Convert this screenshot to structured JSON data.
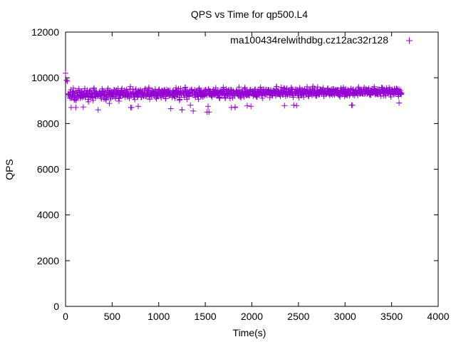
{
  "chart_data": {
    "type": "scatter",
    "title": "QPS vs Time for qp500.L4",
    "xlabel": "Time(s)",
    "ylabel": "QPS",
    "xlim": [
      0,
      4000
    ],
    "ylim": [
      0,
      12000
    ],
    "xticks": [
      "0",
      "500",
      "1000",
      "1500",
      "2000",
      "2500",
      "3000",
      "3500",
      "4000"
    ],
    "yticks": [
      "0",
      "2000",
      "4000",
      "6000",
      "8000",
      "10000",
      "12000"
    ],
    "grid": false,
    "legend_position": "top-right",
    "series": [
      {
        "name": "ma100434_rel_withdbg.cz12a_c32r128",
        "legend_label": "ma100434relwithdbg.cz12ac32r128",
        "color": "#9400d3",
        "marker": "+",
        "x_start": 0,
        "x_step": 10,
        "values": [
          10200,
          9900,
          9850,
          9300,
          9200,
          9350,
          9100,
          9250,
          9400,
          9150,
          9300,
          9050,
          9350,
          9200,
          9450,
          9250,
          9100,
          9380,
          9220,
          9300,
          9420,
          9150,
          9280,
          9350,
          9050,
          9300,
          9400,
          9200,
          9330,
          9120,
          9450,
          9260,
          9180,
          9400,
          9300,
          8600,
          9350,
          9250,
          9150,
          9420,
          9300,
          9200,
          9380,
          9100,
          9290,
          9450,
          9230,
          9350,
          9150,
          9400,
          9260,
          9310,
          9480,
          9180,
          9330,
          9250,
          9400,
          9120,
          9350,
          9290,
          9460,
          9220,
          9300,
          9380,
          9150,
          9420,
          9280,
          9350,
          9200,
          9500,
          9250,
          8700,
          9380,
          9300,
          9160,
          9450,
          9330,
          9220,
          9400,
          9280,
          9360,
          9150,
          9420,
          9300,
          9250,
          9480,
          9200,
          9350,
          9310,
          9430,
          9180,
          9370,
          9260,
          9450,
          9300,
          9220,
          9400,
          9150,
          9340,
          9280,
          9460,
          9300,
          9210,
          9390,
          9330,
          9250,
          9470,
          9180,
          9360,
          9300,
          9420,
          9240,
          9350,
          8650,
          9280,
          9410,
          9300,
          9200,
          9450,
          9330,
          9260,
          9390,
          9150,
          9420,
          9300,
          8600,
          9360,
          9250,
          9480,
          9310,
          9200,
          9400,
          9280,
          9350,
          8800,
          9450,
          9300,
          8550,
          9380,
          9250,
          9420,
          9300,
          9180,
          9460,
          9330,
          9220,
          9400,
          9290,
          9350,
          9250,
          9470,
          9300,
          8500,
          9390,
          9260,
          9430,
          9310,
          9200,
          9410,
          9340,
          9280,
          9450,
          9220,
          9380,
          9300,
          9150,
          9420,
          9350,
          9260,
          9480,
          9300,
          9230,
          9400,
          9330,
          9280,
          9450,
          9200,
          9370,
          9310,
          9250,
          9430,
          9300,
          8700,
          9390,
          9330,
          9260,
          9460,
          9300,
          9220,
          9410,
          9350,
          9280,
          9480,
          9300,
          9240,
          9400,
          9360,
          9290,
          9450,
          8750,
          9380,
          9320,
          9260,
          9470,
          9300,
          9230,
          9420,
          9350,
          9280,
          9500,
          9310,
          9250,
          9430,
          9370,
          9300,
          9480,
          9260,
          9400,
          9340,
          9280,
          9460,
          9320,
          9250,
          9430,
          9380,
          9300,
          9500,
          9270,
          9410,
          9350,
          9290,
          9470,
          9330,
          9260,
          9440,
          9380,
          9310,
          9490,
          9280,
          9420,
          9360,
          9300,
          9470,
          9340,
          9270,
          8800,
          9400,
          9330,
          9460,
          9300,
          9250,
          9420,
          9370,
          9310,
          9490,
          9280,
          9430,
          9350,
          9300,
          9470,
          9340,
          9280,
          9450,
          9380,
          9310,
          9500,
          9270,
          9420,
          9360,
          9300,
          9480,
          9330,
          9260,
          9440,
          9390,
          9320,
          9490,
          9290,
          9430,
          9370,
          9310,
          9480,
          9340,
          9280,
          9460,
          9390,
          9320,
          9510,
          9300,
          9430,
          9370,
          9310,
          9470,
          9350,
          9280,
          9450,
          9390,
          9330,
          9500,
          9300,
          9420,
          9360,
          9300,
          9480,
          9340,
          9270,
          9450,
          8800,
          9330,
          9490,
          9300,
          9430,
          9370,
          9310,
          9470,
          9350,
          9290,
          9460,
          9400,
          9330,
          9500,
          9300,
          9440,
          9380,
          9320,
          9480,
          9350,
          9290,
          9460,
          9400,
          9330,
          9510,
          9310,
          9440,
          9380,
          9320,
          9490,
          9360,
          9300,
          9470,
          9410,
          9340,
          9500,
          9320,
          9450,
          9390,
          9330,
          9480,
          9370,
          9300,
          9460,
          9400,
          9340,
          9510,
          9310,
          9450,
          9380,
          9320,
          9490,
          9360,
          9300
        ]
      }
    ],
    "outliers": [
      [
        60,
        8700
      ],
      [
        110,
        8700
      ],
      [
        190,
        8720
      ],
      [
        470,
        8880
      ],
      [
        700,
        8700
      ],
      [
        780,
        8750
      ],
      [
        1250,
        8600
      ],
      [
        1530,
        8750
      ],
      [
        1540,
        8500
      ],
      [
        1780,
        8700
      ],
      [
        1820,
        8720
      ],
      [
        1950,
        8780
      ],
      [
        2350,
        8780
      ],
      [
        2480,
        8780
      ],
      [
        3080,
        8800
      ],
      [
        3580,
        8900
      ]
    ]
  }
}
